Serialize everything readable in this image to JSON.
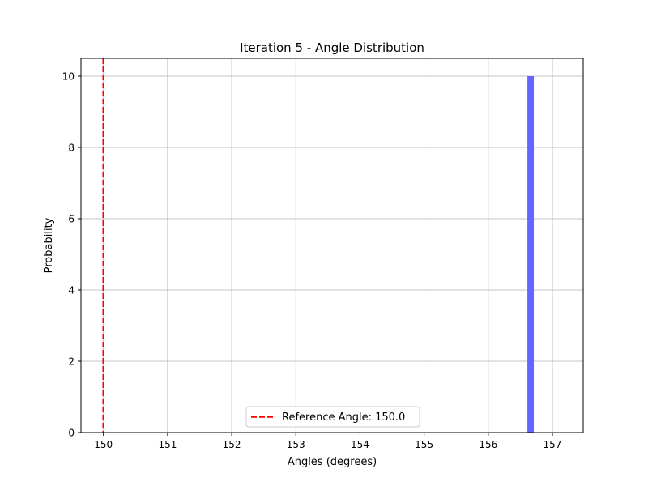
{
  "chart_data": {
    "type": "bar",
    "title": "Iteration 5 - Angle Distribution",
    "xlabel": "Angles (degrees)",
    "ylabel": "Probability",
    "xlim": [
      149.65,
      157.48
    ],
    "ylim": [
      0,
      10.5
    ],
    "xticks": [
      "150",
      "151",
      "152",
      "153",
      "154",
      "155",
      "156",
      "157"
    ],
    "yticks": [
      "0",
      "2",
      "4",
      "6",
      "8",
      "10"
    ],
    "bars": [
      {
        "x_start": 156.61,
        "x_end": 156.71,
        "value": 10
      }
    ],
    "reference_line": {
      "x": 150.0,
      "label": "Reference Angle: 150.0",
      "color": "#ff0000",
      "style": "dashed"
    },
    "bar_color": "#6464ff",
    "grid": true,
    "legend_position": "bottom-center"
  }
}
